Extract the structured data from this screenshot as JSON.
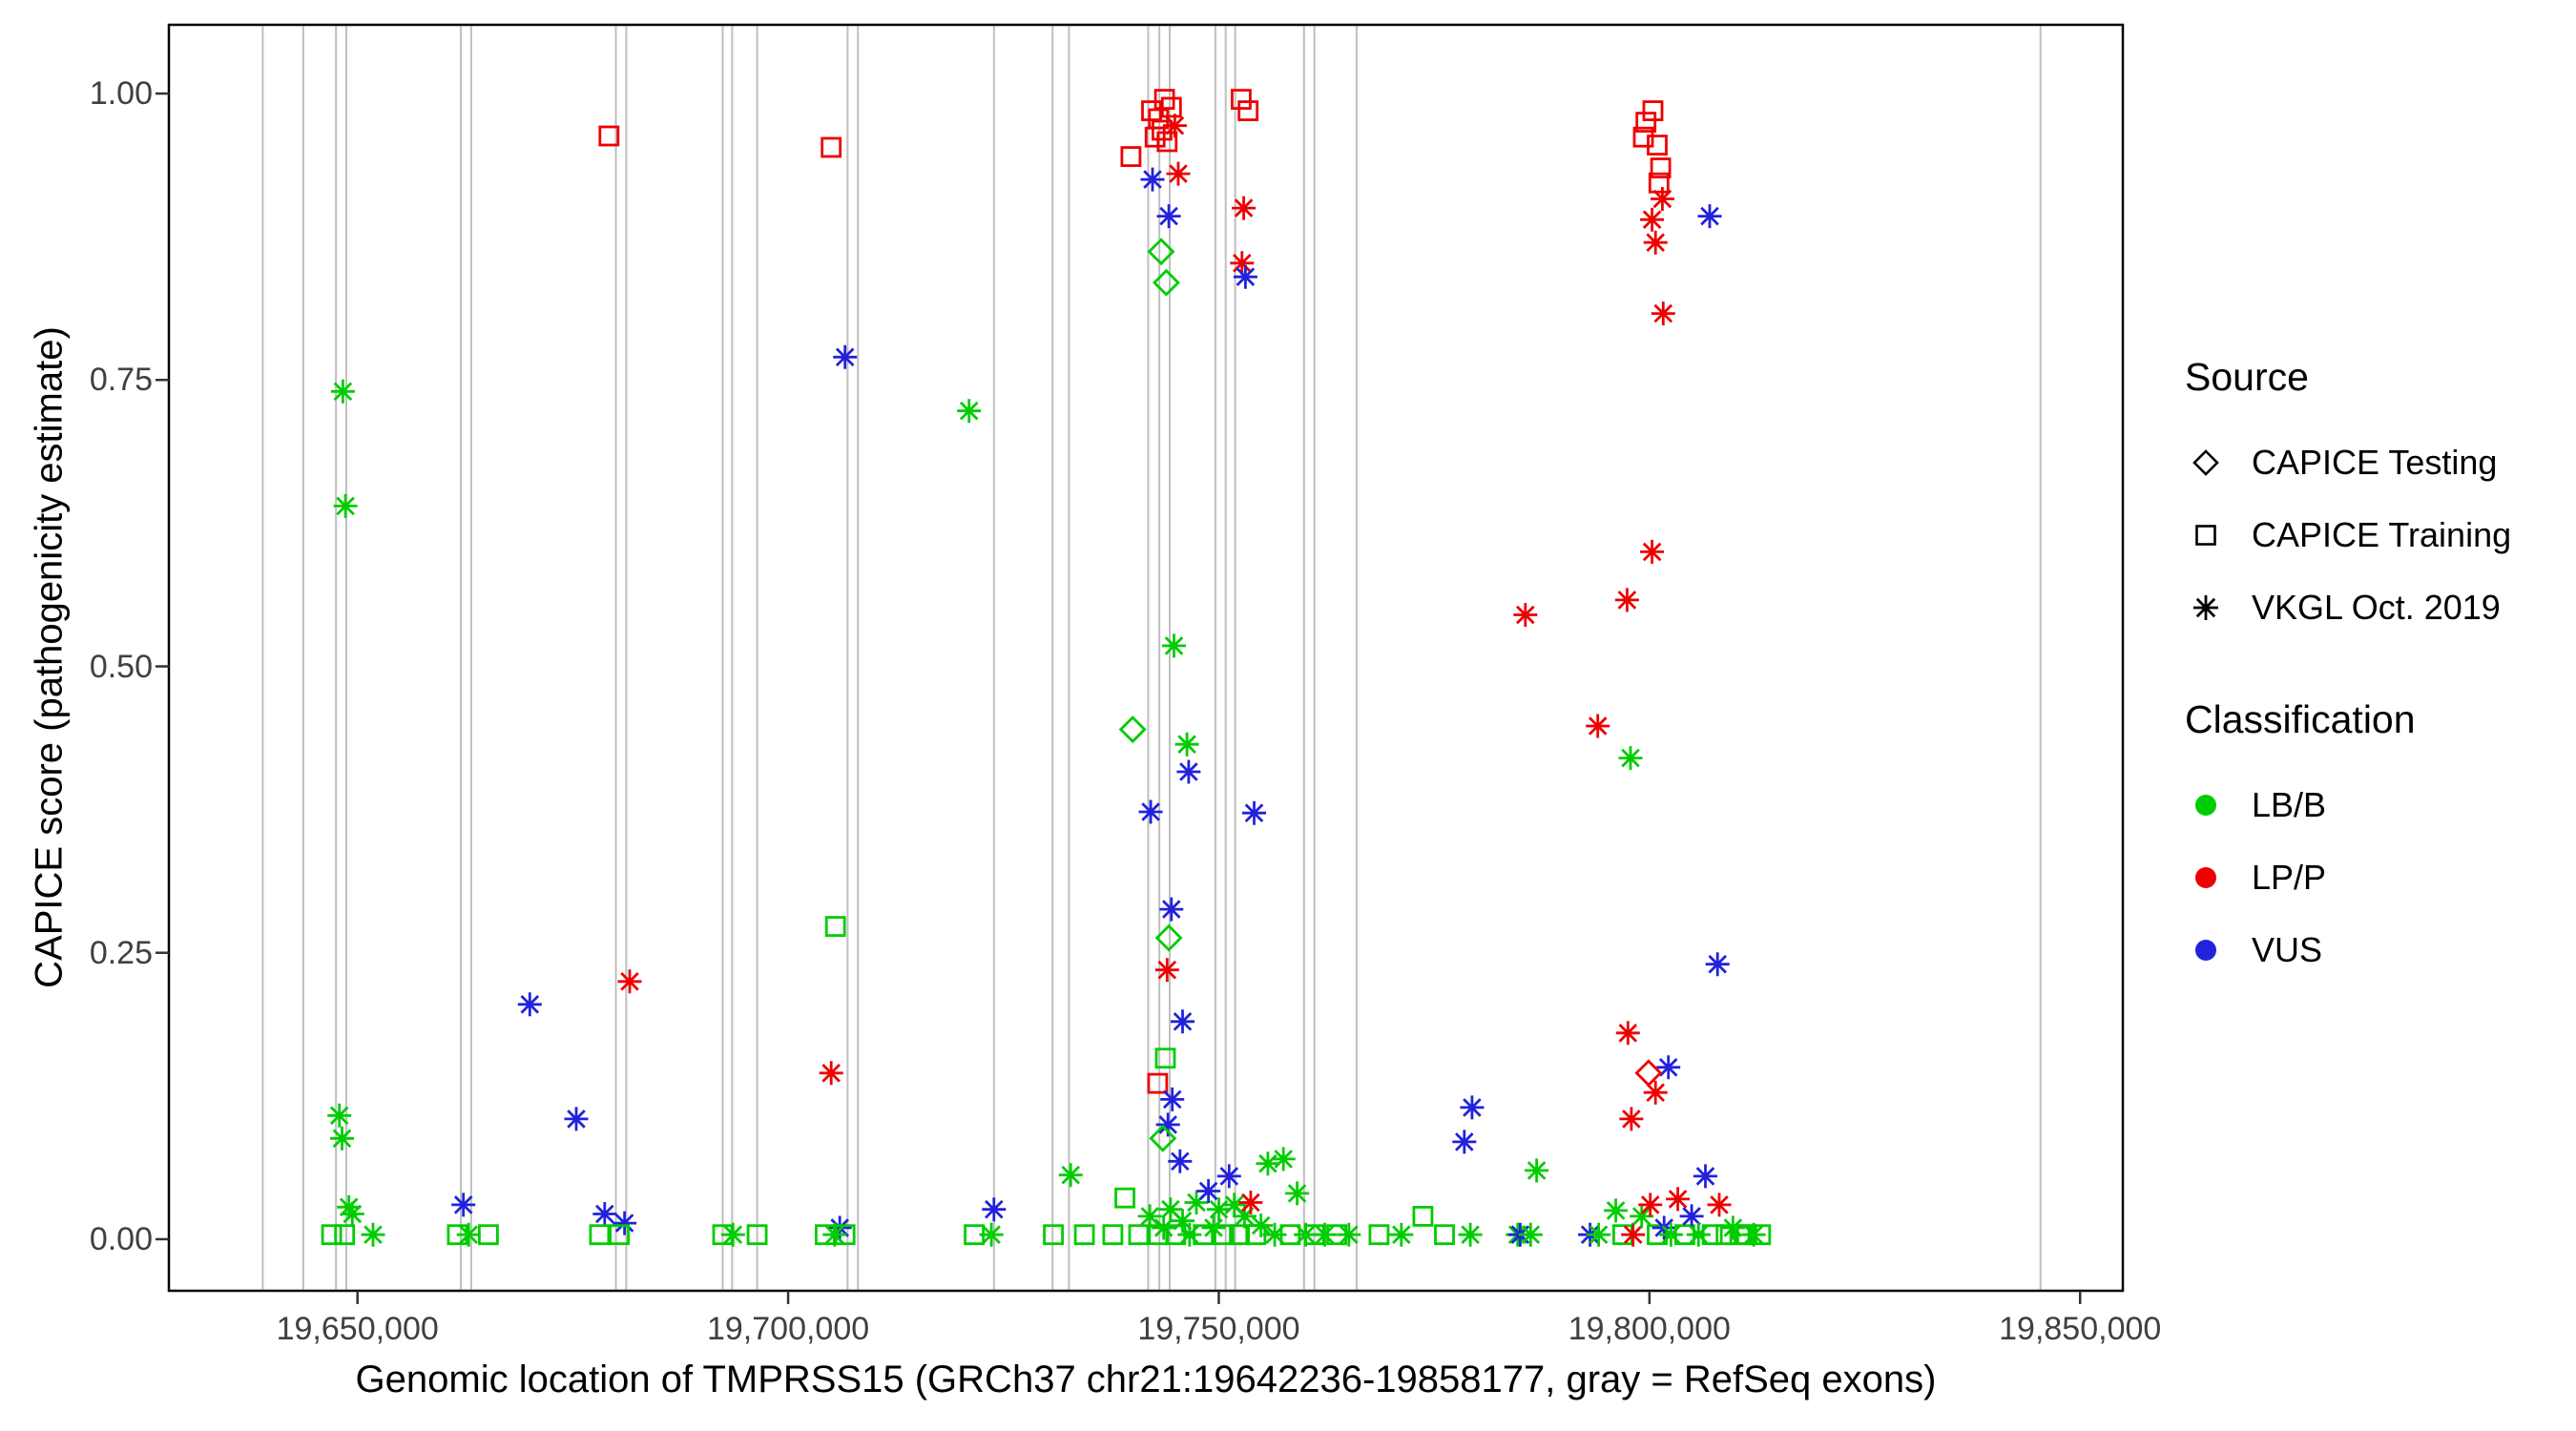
{
  "chart_data": {
    "type": "scatter",
    "title": "",
    "xlabel": "Genomic location of TMPRSS15 (GRCh37 chr21:19642236-19858177, gray = RefSeq exons)",
    "ylabel": "CAPICE score (pathogenicity estimate)",
    "x_domain": [
      19628100,
      19854960
    ],
    "y_domain": [
      -0.045,
      1.06
    ],
    "grid": false,
    "legend_position": "right",
    "x_ticks": [
      {
        "value": 19650000,
        "label": "19,650,000"
      },
      {
        "value": 19700000,
        "label": "19,700,000"
      },
      {
        "value": 19750000,
        "label": "19,750,000"
      },
      {
        "value": 19800000,
        "label": "19,800,000"
      },
      {
        "value": 19850000,
        "label": "19,850,000"
      }
    ],
    "y_ticks": [
      {
        "value": 0.0,
        "label": "0.00"
      },
      {
        "value": 0.25,
        "label": "0.25"
      },
      {
        "value": 0.5,
        "label": "0.50"
      },
      {
        "value": 0.75,
        "label": "0.75"
      },
      {
        "value": 1.0,
        "label": "1.00"
      }
    ],
    "exon_color": "#bfbfbf",
    "exon_positions": [
      19639000,
      19643700,
      19647500,
      19648700,
      19662000,
      19663200,
      19680000,
      19681200,
      19692400,
      19693500,
      19696400,
      19706900,
      19708100,
      19723900,
      19730700,
      19732600,
      19741800,
      19743100,
      19744300,
      19749600,
      19750800,
      19751900,
      19759900,
      19761100,
      19766000,
      19845400
    ],
    "colors": {
      "B": "#00CD00",
      "P": "#EE0000",
      "U": "#2222DD"
    },
    "source_shapes": {
      "T": "open-diamond",
      "R": "open-square",
      "V": "asterisk"
    },
    "source_labels": {
      "T": "CAPICE Testing",
      "R": "CAPICE Training",
      "V": "VKGL Oct. 2019"
    },
    "class_labels": {
      "B": "LB/B",
      "P": "LP/P",
      "U": "VUS"
    },
    "points": [
      [
        19648300,
        0.74,
        "V",
        "B"
      ],
      [
        19648600,
        0.64,
        "V",
        "B"
      ],
      [
        19647900,
        0.108,
        "V",
        "B"
      ],
      [
        19648200,
        0.088,
        "V",
        "B"
      ],
      [
        19649000,
        0.028,
        "V",
        "B"
      ],
      [
        19649400,
        0.022,
        "V",
        "B"
      ],
      [
        19647000,
        0.004,
        "R",
        "B"
      ],
      [
        19648500,
        0.004,
        "R",
        "B"
      ],
      [
        19651800,
        0.004,
        "V",
        "B"
      ],
      [
        19662300,
        0.03,
        "V",
        "U"
      ],
      [
        19661600,
        0.004,
        "R",
        "B"
      ],
      [
        19662900,
        0.004,
        "V",
        "B"
      ],
      [
        19665200,
        0.004,
        "R",
        "B"
      ],
      [
        19670000,
        0.205,
        "V",
        "U"
      ],
      [
        19675400,
        0.105,
        "V",
        "U"
      ],
      [
        19679200,
        0.963,
        "R",
        "P"
      ],
      [
        19681600,
        0.225,
        "V",
        "P"
      ],
      [
        19678700,
        0.022,
        "V",
        "U"
      ],
      [
        19681000,
        0.014,
        "V",
        "U"
      ],
      [
        19678100,
        0.004,
        "R",
        "B"
      ],
      [
        19680400,
        0.004,
        "R",
        "B"
      ],
      [
        19692400,
        0.004,
        "R",
        "B"
      ],
      [
        19693600,
        0.004,
        "V",
        "B"
      ],
      [
        19696400,
        0.004,
        "R",
        "B"
      ],
      [
        19705000,
        0.953,
        "R",
        "P"
      ],
      [
        19706600,
        0.77,
        "V",
        "U"
      ],
      [
        19705500,
        0.273,
        "R",
        "B"
      ],
      [
        19705000,
        0.145,
        "V",
        "P"
      ],
      [
        19706000,
        0.01,
        "V",
        "U"
      ],
      [
        19704300,
        0.004,
        "R",
        "B"
      ],
      [
        19705400,
        0.004,
        "V",
        "B"
      ],
      [
        19706600,
        0.004,
        "R",
        "B"
      ],
      [
        19721000,
        0.723,
        "V",
        "B"
      ],
      [
        19723900,
        0.026,
        "V",
        "U"
      ],
      [
        19721600,
        0.004,
        "R",
        "B"
      ],
      [
        19723600,
        0.004,
        "V",
        "B"
      ],
      [
        19732800,
        0.056,
        "V",
        "B"
      ],
      [
        19730800,
        0.004,
        "R",
        "B"
      ],
      [
        19734400,
        0.004,
        "R",
        "B"
      ],
      [
        19739800,
        0.945,
        "R",
        "P"
      ],
      [
        19742200,
        0.985,
        "R",
        "P"
      ],
      [
        19743000,
        0.978,
        "R",
        "P"
      ],
      [
        19743700,
        0.995,
        "R",
        "P"
      ],
      [
        19744500,
        0.988,
        "R",
        "P"
      ],
      [
        19742600,
        0.962,
        "R",
        "P"
      ],
      [
        19744000,
        0.958,
        "R",
        "P"
      ],
      [
        19743400,
        0.968,
        "R",
        "P"
      ],
      [
        19744900,
        0.972,
        "V",
        "P"
      ],
      [
        19742300,
        0.925,
        "V",
        "U"
      ],
      [
        19744200,
        0.893,
        "V",
        "U"
      ],
      [
        19743300,
        0.862,
        "T",
        "B"
      ],
      [
        19743900,
        0.835,
        "T",
        "B"
      ],
      [
        19745300,
        0.93,
        "V",
        "P"
      ],
      [
        19752600,
        0.995,
        "R",
        "P"
      ],
      [
        19753400,
        0.985,
        "R",
        "P"
      ],
      [
        19752900,
        0.9,
        "V",
        "P"
      ],
      [
        19752700,
        0.852,
        "V",
        "P"
      ],
      [
        19753100,
        0.84,
        "V",
        "U"
      ],
      [
        19744800,
        0.518,
        "V",
        "B"
      ],
      [
        19740000,
        0.445,
        "T",
        "B"
      ],
      [
        19746300,
        0.432,
        "V",
        "B"
      ],
      [
        19746500,
        0.408,
        "V",
        "U"
      ],
      [
        19742100,
        0.373,
        "V",
        "U"
      ],
      [
        19754100,
        0.372,
        "V",
        "U"
      ],
      [
        19744500,
        0.288,
        "V",
        "U"
      ],
      [
        19744200,
        0.263,
        "T",
        "B"
      ],
      [
        19744000,
        0.235,
        "V",
        "P"
      ],
      [
        19745800,
        0.19,
        "V",
        "U"
      ],
      [
        19743800,
        0.158,
        "R",
        "B"
      ],
      [
        19742900,
        0.136,
        "R",
        "P"
      ],
      [
        19744600,
        0.122,
        "V",
        "U"
      ],
      [
        19744100,
        0.1,
        "V",
        "U"
      ],
      [
        19743500,
        0.088,
        "T",
        "B"
      ],
      [
        19745500,
        0.068,
        "V",
        "U"
      ],
      [
        19739100,
        0.036,
        "R",
        "B"
      ],
      [
        19737700,
        0.004,
        "R",
        "B"
      ],
      [
        19740700,
        0.004,
        "R",
        "B"
      ],
      [
        19742000,
        0.02,
        "V",
        "B"
      ],
      [
        19743000,
        0.004,
        "R",
        "B"
      ],
      [
        19743600,
        0.01,
        "V",
        "B"
      ],
      [
        19744400,
        0.026,
        "V",
        "B"
      ],
      [
        19745000,
        0.004,
        "R",
        "B"
      ],
      [
        19745800,
        0.016,
        "V",
        "B"
      ],
      [
        19746600,
        0.004,
        "V",
        "B"
      ],
      [
        19747400,
        0.032,
        "V",
        "B"
      ],
      [
        19748200,
        0.004,
        "R",
        "B"
      ],
      [
        19748800,
        0.042,
        "V",
        "U"
      ],
      [
        19749400,
        0.01,
        "V",
        "B"
      ],
      [
        19750000,
        0.026,
        "V",
        "B"
      ],
      [
        19750600,
        0.004,
        "R",
        "B"
      ],
      [
        19751200,
        0.055,
        "V",
        "U"
      ],
      [
        19751800,
        0.03,
        "V",
        "B"
      ],
      [
        19752400,
        0.004,
        "R",
        "B"
      ],
      [
        19753000,
        0.02,
        "V",
        "B"
      ],
      [
        19753700,
        0.032,
        "V",
        "P"
      ],
      [
        19754300,
        0.004,
        "R",
        "B"
      ],
      [
        19754900,
        0.012,
        "V",
        "B"
      ],
      [
        19755700,
        0.066,
        "V",
        "B"
      ],
      [
        19756500,
        0.004,
        "V",
        "B"
      ],
      [
        19757500,
        0.07,
        "V",
        "B"
      ],
      [
        19758300,
        0.004,
        "R",
        "B"
      ],
      [
        19759100,
        0.04,
        "V",
        "B"
      ],
      [
        19760100,
        0.004,
        "V",
        "B"
      ],
      [
        19761100,
        0.004,
        "R",
        "B"
      ],
      [
        19762300,
        0.004,
        "V",
        "B"
      ],
      [
        19763700,
        0.004,
        "R",
        "B"
      ],
      [
        19765100,
        0.004,
        "V",
        "B"
      ],
      [
        19768600,
        0.004,
        "R",
        "B"
      ],
      [
        19771200,
        0.004,
        "V",
        "B"
      ],
      [
        19773700,
        0.02,
        "R",
        "B"
      ],
      [
        19776200,
        0.004,
        "R",
        "B"
      ],
      [
        19779200,
        0.004,
        "V",
        "B"
      ],
      [
        19784700,
        0.004,
        "V",
        "B"
      ],
      [
        19779400,
        0.115,
        "V",
        "U"
      ],
      [
        19778500,
        0.085,
        "V",
        "U"
      ],
      [
        19785600,
        0.545,
        "V",
        "P"
      ],
      [
        19786900,
        0.06,
        "V",
        "B"
      ],
      [
        19785000,
        0.004,
        "V",
        "U"
      ],
      [
        19786200,
        0.004,
        "V",
        "B"
      ],
      [
        19799600,
        0.975,
        "R",
        "P"
      ],
      [
        19800400,
        0.985,
        "R",
        "P"
      ],
      [
        19799300,
        0.962,
        "R",
        "P"
      ],
      [
        19800900,
        0.955,
        "R",
        "P"
      ],
      [
        19801300,
        0.935,
        "R",
        "P"
      ],
      [
        19801100,
        0.922,
        "R",
        "P"
      ],
      [
        19801500,
        0.908,
        "V",
        "P"
      ],
      [
        19800300,
        0.89,
        "V",
        "P"
      ],
      [
        19800700,
        0.87,
        "V",
        "P"
      ],
      [
        19807000,
        0.893,
        "V",
        "U"
      ],
      [
        19801600,
        0.808,
        "V",
        "P"
      ],
      [
        19800300,
        0.6,
        "V",
        "P"
      ],
      [
        19797400,
        0.558,
        "V",
        "P"
      ],
      [
        19794000,
        0.448,
        "V",
        "P"
      ],
      [
        19797800,
        0.42,
        "V",
        "B"
      ],
      [
        19807900,
        0.24,
        "V",
        "U"
      ],
      [
        19797500,
        0.18,
        "V",
        "P"
      ],
      [
        19802200,
        0.15,
        "V",
        "U"
      ],
      [
        19799900,
        0.145,
        "T",
        "P"
      ],
      [
        19800700,
        0.128,
        "V",
        "P"
      ],
      [
        19797900,
        0.105,
        "V",
        "P"
      ],
      [
        19793100,
        0.004,
        "V",
        "U"
      ],
      [
        19794100,
        0.004,
        "V",
        "B"
      ],
      [
        19796100,
        0.025,
        "V",
        "B"
      ],
      [
        19796900,
        0.004,
        "R",
        "B"
      ],
      [
        19798100,
        0.004,
        "V",
        "P"
      ],
      [
        19799100,
        0.02,
        "V",
        "B"
      ],
      [
        19800100,
        0.03,
        "V",
        "P"
      ],
      [
        19800900,
        0.004,
        "R",
        "B"
      ],
      [
        19801700,
        0.01,
        "V",
        "U"
      ],
      [
        19802500,
        0.004,
        "V",
        "B"
      ],
      [
        19803300,
        0.035,
        "V",
        "P"
      ],
      [
        19804100,
        0.004,
        "R",
        "B"
      ],
      [
        19804900,
        0.02,
        "V",
        "U"
      ],
      [
        19805700,
        0.004,
        "V",
        "B"
      ],
      [
        19806500,
        0.055,
        "V",
        "U"
      ],
      [
        19807300,
        0.004,
        "R",
        "B"
      ],
      [
        19808100,
        0.03,
        "V",
        "P"
      ],
      [
        19808900,
        0.004,
        "R",
        "B"
      ],
      [
        19809700,
        0.01,
        "V",
        "B"
      ],
      [
        19810500,
        0.004,
        "R",
        "B"
      ],
      [
        19811300,
        0.004,
        "R",
        "B"
      ],
      [
        19812100,
        0.004,
        "V",
        "B"
      ],
      [
        19812900,
        0.004,
        "R",
        "B"
      ]
    ]
  },
  "legend": {
    "source_title": "Source",
    "source_items": [
      {
        "label": "CAPICE Testing",
        "shape": "open-diamond"
      },
      {
        "label": "CAPICE Training",
        "shape": "open-square"
      },
      {
        "label": "VKGL Oct. 2019",
        "shape": "asterisk"
      }
    ],
    "classification_title": "Classification",
    "classification_items": [
      {
        "label": "LB/B",
        "color": "#00CD00"
      },
      {
        "label": "LP/P",
        "color": "#EE0000"
      },
      {
        "label": "VUS",
        "color": "#2222DD"
      }
    ]
  }
}
